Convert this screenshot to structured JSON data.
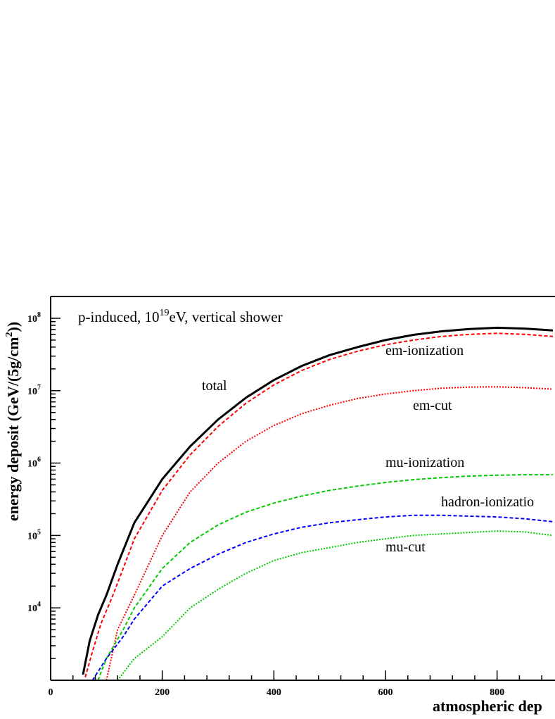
{
  "chart_data": {
    "type": "line",
    "title": "p-induced, 10^19eV, vertical shower",
    "title_parts": {
      "prefix": "p-induced, 10",
      "exp": "19",
      "suffix": "eV, vertical shower"
    },
    "xlabel": "atmospheric dep",
    "ylabel_parts": {
      "main": "energy deposit (GeV/(5g/cm",
      "exp": "2",
      "tail": "))"
    },
    "xlim": [
      0,
      900
    ],
    "ylim": [
      1000,
      200000000
    ],
    "y_scale": "log",
    "x_ticks": [
      0,
      200,
      400,
      600,
      800
    ],
    "y_ticks": [
      {
        "base": "10",
        "exp": "4",
        "value": 10000
      },
      {
        "base": "10",
        "exp": "5",
        "value": 100000
      },
      {
        "base": "10",
        "exp": "6",
        "value": 1000000
      },
      {
        "base": "10",
        "exp": "7",
        "value": 10000000
      },
      {
        "base": "10",
        "exp": "8",
        "value": 100000000
      }
    ],
    "grid": false,
    "series": [
      {
        "name": "total",
        "color": "#000000",
        "style": "solid",
        "x": [
          58,
          70,
          85,
          100,
          120,
          150,
          200,
          250,
          300,
          350,
          400,
          450,
          500,
          550,
          600,
          650,
          700,
          750,
          800,
          850,
          900
        ],
        "y": [
          1200,
          3500,
          8000,
          15000,
          40000,
          150000,
          600000,
          1700000,
          4000000,
          8000000,
          14000000,
          22000000,
          31000000,
          40000000,
          50000000,
          59000000,
          66000000,
          71000000,
          74000000,
          72000000,
          68000000
        ]
      },
      {
        "name": "em-ionization",
        "color": "#ff0000",
        "style": "dashed",
        "x": [
          62,
          75,
          90,
          110,
          130,
          150,
          200,
          250,
          300,
          350,
          400,
          450,
          500,
          550,
          600,
          650,
          700,
          750,
          800,
          850,
          900
        ],
        "y": [
          1100,
          2500,
          6000,
          14000,
          35000,
          90000,
          420000,
          1300000,
          3200000,
          6700000,
          12000000,
          19000000,
          27000000,
          35000000,
          43000000,
          50000000,
          56000000,
          60000000,
          62000000,
          60000000,
          56000000
        ]
      },
      {
        "name": "em-cut",
        "color": "#ff0000",
        "style": "dotted",
        "x": [
          100,
          120,
          150,
          200,
          250,
          300,
          350,
          400,
          450,
          500,
          550,
          600,
          650,
          700,
          750,
          800,
          850,
          900
        ],
        "y": [
          1000,
          5000,
          15000,
          100000,
          400000,
          1000000,
          2000000,
          3300000,
          4800000,
          6300000,
          7800000,
          9000000,
          10000000,
          10800000,
          11200000,
          11300000,
          11000000,
          10500000
        ]
      },
      {
        "name": "mu-ionization",
        "color": "#00cc00",
        "style": "dashed",
        "x": [
          85,
          100,
          130,
          150,
          200,
          250,
          300,
          350,
          400,
          450,
          500,
          550,
          600,
          650,
          700,
          750,
          800,
          850,
          900
        ],
        "y": [
          1000,
          2000,
          5000,
          10000,
          35000,
          80000,
          140000,
          210000,
          280000,
          350000,
          420000,
          480000,
          540000,
          590000,
          630000,
          660000,
          680000,
          690000,
          690000
        ]
      },
      {
        "name": "hadron-ionizatio",
        "color": "#0000ff",
        "style": "dashed",
        "x": [
          75,
          100,
          130,
          150,
          200,
          250,
          300,
          350,
          400,
          450,
          500,
          550,
          600,
          650,
          700,
          750,
          800,
          850,
          900
        ],
        "y": [
          1000,
          2000,
          4000,
          7000,
          20000,
          35000,
          55000,
          80000,
          105000,
          130000,
          150000,
          165000,
          180000,
          190000,
          190000,
          185000,
          180000,
          170000,
          155000
        ]
      },
      {
        "name": "mu-cut",
        "color": "#00cc00",
        "style": "dotted",
        "x": [
          120,
          150,
          200,
          250,
          300,
          350,
          400,
          450,
          500,
          550,
          600,
          650,
          700,
          750,
          800,
          850,
          900
        ],
        "y": [
          1000,
          2000,
          4000,
          10000,
          18000,
          30000,
          45000,
          58000,
          68000,
          80000,
          90000,
          100000,
          105000,
          110000,
          115000,
          112000,
          100000
        ]
      }
    ],
    "labels": [
      {
        "text": "total",
        "series": "total"
      },
      {
        "text": "em-ionization",
        "series": "em-ionization"
      },
      {
        "text": "em-cut",
        "series": "em-cut"
      },
      {
        "text": "mu-ionization",
        "series": "mu-ionization"
      },
      {
        "text": "hadron-ionizatio",
        "series": "hadron-ionizatio"
      },
      {
        "text": "mu-cut",
        "series": "mu-cut"
      }
    ]
  }
}
